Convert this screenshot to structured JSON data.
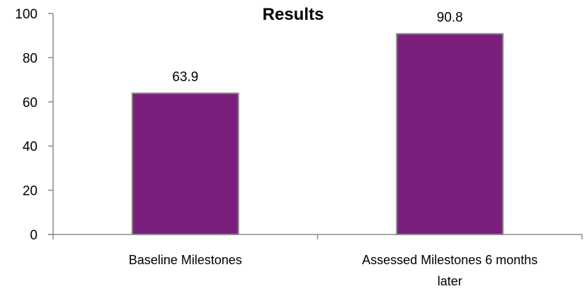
{
  "chart_data": {
    "type": "bar",
    "title": "Results",
    "xlabel": "",
    "ylabel": "",
    "categories": [
      "Baseline Milestones",
      "Assessed Milestones 6 months later"
    ],
    "values": [
      63.9,
      90.8
    ],
    "data_labels": [
      "63.9",
      "90.8"
    ],
    "ylim": [
      0,
      100
    ],
    "yticks": [
      0,
      20,
      40,
      60,
      80,
      100
    ],
    "grid": false,
    "legend": "none",
    "colors": {
      "bar": "#7B1F7C",
      "bar_border": "#8C8C8C",
      "axis": "#8C8C8C"
    }
  }
}
